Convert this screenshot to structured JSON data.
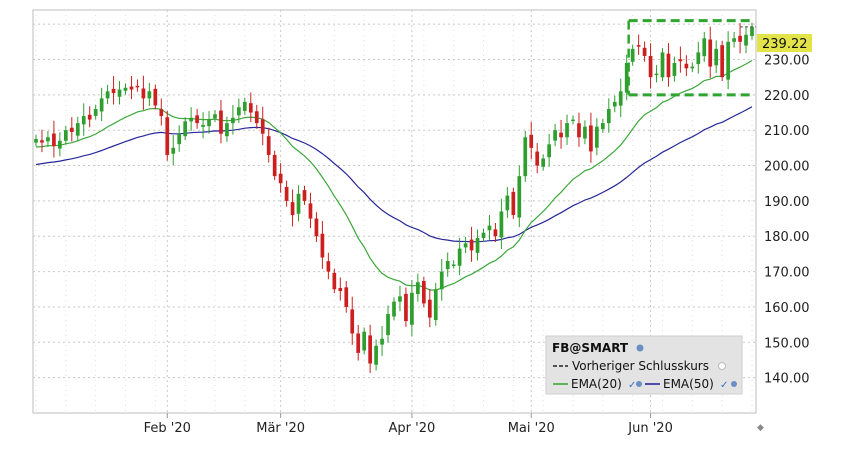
{
  "chart_data": {
    "type": "candlestick",
    "symbol_label": "FB@SMART",
    "last_price_label": "239.22",
    "ylim": [
      130,
      244
    ],
    "grid": true,
    "legend_position": "bottom-right",
    "y_ticks": [
      "140.00",
      "150.00",
      "160.00",
      "170.00",
      "180.00",
      "190.00",
      "200.00",
      "210.00",
      "220.00",
      "230.00"
    ],
    "x_ticks": [
      {
        "label": "Feb '20",
        "index": 22
      },
      {
        "label": "Mär '20",
        "index": 41
      },
      {
        "label": "Apr '20",
        "index": 63
      },
      {
        "label": "Mai '20",
        "index": 83
      },
      {
        "label": "Jun '20",
        "index": 103
      }
    ],
    "legend": {
      "prev_close_label": "Vorheriger Schlusskurs",
      "ema20_label": "EMA(20)",
      "ema50_label": "EMA(50)"
    },
    "colors": {
      "up": "#2e9e2e",
      "down": "#cc1f1f",
      "ema20": "#3aa83a",
      "ema50": "#27279b",
      "dashed_box": "#2fa52f",
      "price_tag": "#e3e34a",
      "grid": "#c8c8c8",
      "legend_bg": "#e3e3e3"
    },
    "dashed_box": {
      "top": 241,
      "bottom": 220,
      "start_index": 100,
      "end_index": 119
    },
    "closes": [
      207.5,
      206.5,
      208.0,
      205.5,
      207.0,
      210.0,
      209.5,
      212.0,
      214.0,
      213.0,
      216.0,
      219.0,
      221.0,
      220.5,
      221.5,
      222.0,
      221.5,
      222.5,
      219.0,
      221.0,
      217.0,
      214.0,
      203.0,
      205.0,
      209.0,
      212.5,
      213.5,
      212.0,
      211.5,
      213.0,
      214.5,
      209.0,
      212.0,
      213.5,
      216.5,
      218.0,
      215.0,
      212.0,
      209.0,
      203.0,
      197.0,
      195.0,
      190.0,
      186.0,
      192.0,
      190.0,
      185.0,
      180.0,
      174.0,
      170.0,
      165.0,
      164.5,
      160.0,
      152.5,
      147.0,
      153.0,
      144.0,
      149.0,
      151.0,
      158.0,
      161.5,
      163.0,
      156.0,
      164.0,
      167.0,
      161.0,
      157.0,
      165.0,
      170.0,
      173.0,
      172.0,
      176.5,
      178.0,
      176.0,
      179.5,
      181.0,
      183.0,
      180.0,
      187.0,
      191.5,
      186.0,
      197.0,
      208.0,
      205.0,
      200.0,
      202.0,
      206.0,
      210.0,
      208.0,
      212.0,
      213.0,
      208.0,
      211.0,
      204.0,
      211.0,
      212.0,
      216.0,
      218.0,
      221.0,
      229.0,
      233.0,
      234.0,
      231.0,
      225.0,
      226.0,
      232.0,
      225.0,
      229.0,
      229.5,
      227.5,
      228.0,
      232.0,
      236.0,
      228.0,
      233.0,
      225.0,
      235.0,
      236.0,
      235.0,
      237.0,
      239.22
    ]
  }
}
